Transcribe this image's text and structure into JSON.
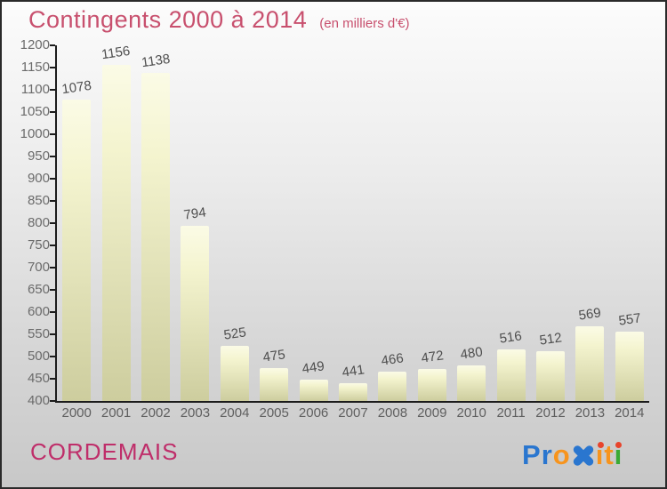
{
  "header": {
    "title": "Contingents 2000 à 2014",
    "subtitle": "(en milliers d'€)"
  },
  "chart_data": {
    "type": "bar",
    "title": "Contingents 2000 à 2014",
    "subtitle": "(en milliers d'€)",
    "categories": [
      "2000",
      "2001",
      "2002",
      "2003",
      "2004",
      "2005",
      "2006",
      "2007",
      "2008",
      "2009",
      "2010",
      "2011",
      "2012",
      "2013",
      "2014"
    ],
    "values": [
      1078,
      1156,
      1138,
      794,
      525,
      475,
      449,
      441,
      466,
      472,
      480,
      516,
      512,
      569,
      557
    ],
    "xlabel": "",
    "ylabel": "",
    "ylim": [
      400,
      1200
    ],
    "ytick_step": 50,
    "grid": false,
    "legend": null,
    "bar_color_top": "#fbfbe6",
    "bar_color_bottom": "#cdcd9e"
  },
  "footer": {
    "location": "CORDEMAIS",
    "brand": {
      "name": "Proxiti",
      "letters": [
        {
          "ch": "P",
          "color": "blue"
        },
        {
          "ch": "r",
          "color": "blue"
        },
        {
          "ch": "o",
          "color": "orange"
        },
        {
          "ch": "x",
          "color": "blue",
          "style": "xmark"
        },
        {
          "ch": "i",
          "color": "orange",
          "dot": "red"
        },
        {
          "ch": "t",
          "color": "orange"
        },
        {
          "ch": "i",
          "color": "green",
          "dot": "red"
        }
      ]
    }
  },
  "colors": {
    "title": "#c8506e",
    "location": "#bf2e6a",
    "axis": "#1c1c1c",
    "tick_label": "#6b6b6b",
    "value_label": "#4e4e4e",
    "brand_blue": "#2a76cf",
    "brand_orange": "#f7941d",
    "brand_green": "#3aaa35",
    "brand_red_dot": "#e8442c"
  }
}
